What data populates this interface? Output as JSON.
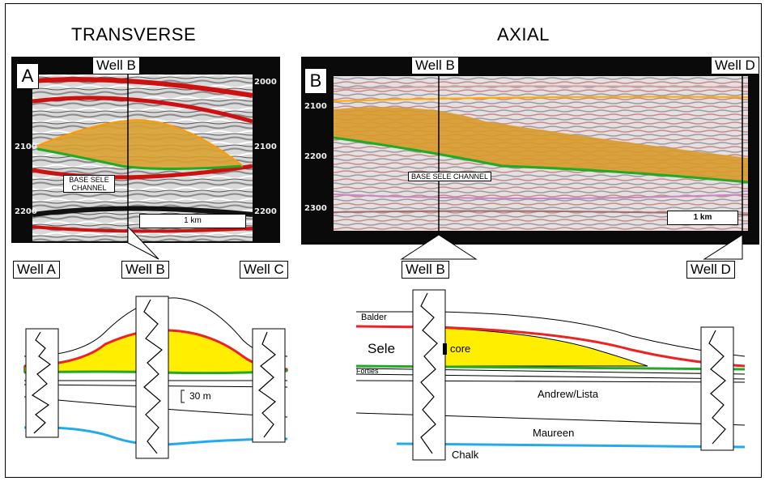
{
  "headings": {
    "transverse": "TRANSVERSE",
    "axial": "AXIAL"
  },
  "panel_a": {
    "letter": "A",
    "well_label": "Well B",
    "depth_ticks_left": [
      "2100",
      "2200"
    ],
    "depth_ticks_right": [
      "2000",
      "2100",
      "2200"
    ],
    "channel_label": "BASE SELE CHANNEL",
    "scale_label": "1 km"
  },
  "panel_b": {
    "letter": "B",
    "well_labels": [
      "Well B",
      "Well D"
    ],
    "depth_ticks": [
      "2100",
      "2200",
      "2300"
    ],
    "channel_label": "BASE SELE CHANNEL",
    "scale_label": "1 km"
  },
  "transverse_section": {
    "well_labels": [
      "Well A",
      "Well B",
      "Well C"
    ],
    "scale_label": "30 m"
  },
  "axial_section": {
    "well_labels": [
      "Well B",
      "Well D"
    ],
    "formations": [
      "Balder",
      "Sele",
      "Forties",
      "Andrew/Lista",
      "Maureen",
      "Chalk"
    ],
    "core_label": "core"
  },
  "colors": {
    "sand": "#ffee00",
    "top_red": "#ee2222",
    "base_green": "#22aa22",
    "chalk_blue": "#22aaee",
    "seismic_frame": "#0a0a0a"
  }
}
